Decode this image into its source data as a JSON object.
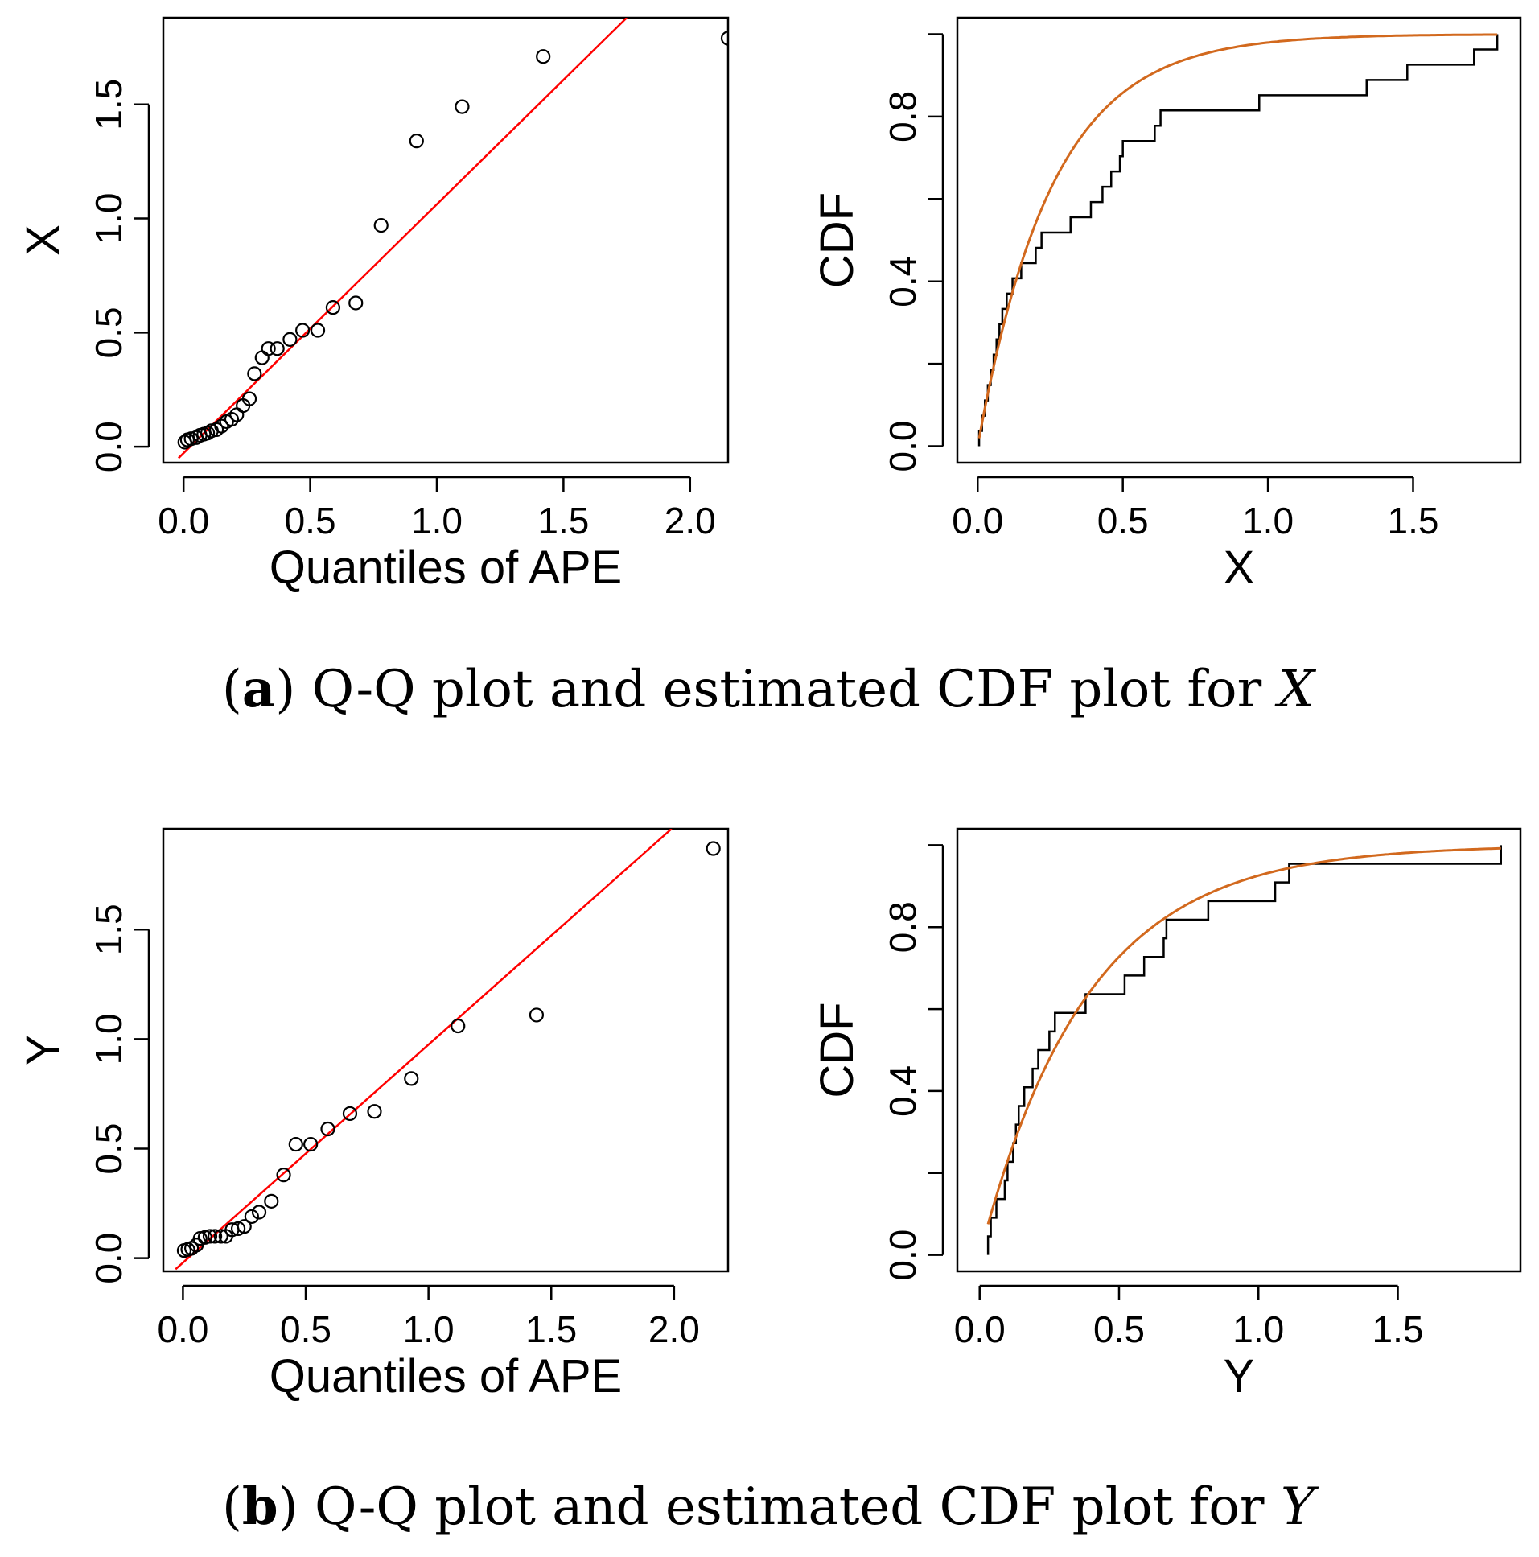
{
  "chart_data": [
    {
      "id": "qq_x",
      "type": "scatter",
      "title": "",
      "xlabel": "Quantiles of APE",
      "ylabel": "X",
      "xlim": [
        -0.08,
        2.15
      ],
      "ylim": [
        -0.07,
        1.88
      ],
      "xticks": [
        0.0,
        0.5,
        1.0,
        1.5,
        2.0
      ],
      "xtick_labels": [
        "0.0",
        "0.5",
        "1.0",
        "1.5",
        "2.0"
      ],
      "yticks": [
        0.0,
        0.5,
        1.0,
        1.5
      ],
      "ytick_labels": [
        "0.0",
        "0.5",
        "1.0",
        "1.5"
      ],
      "points": [
        [
          0.005,
          0.02
        ],
        [
          0.015,
          0.03
        ],
        [
          0.03,
          0.035
        ],
        [
          0.05,
          0.04
        ],
        [
          0.065,
          0.05
        ],
        [
          0.08,
          0.055
        ],
        [
          0.095,
          0.06
        ],
        [
          0.11,
          0.07
        ],
        [
          0.13,
          0.075
        ],
        [
          0.15,
          0.09
        ],
        [
          0.17,
          0.11
        ],
        [
          0.19,
          0.12
        ],
        [
          0.21,
          0.14
        ],
        [
          0.235,
          0.18
        ],
        [
          0.26,
          0.21
        ],
        [
          0.28,
          0.32
        ],
        [
          0.31,
          0.39
        ],
        [
          0.335,
          0.43
        ],
        [
          0.37,
          0.43
        ],
        [
          0.42,
          0.47
        ],
        [
          0.47,
          0.51
        ],
        [
          0.53,
          0.51
        ],
        [
          0.59,
          0.61
        ],
        [
          0.68,
          0.63
        ],
        [
          0.78,
          0.97
        ],
        [
          0.92,
          1.34
        ],
        [
          1.1,
          1.49
        ],
        [
          1.42,
          1.71
        ],
        [
          2.15,
          1.79
        ]
      ],
      "line": {
        "x": [
          -0.02,
          1.75
        ],
        "y": [
          -0.05,
          1.88
        ],
        "color": "#ff0000"
      }
    },
    {
      "id": "cdf_x",
      "type": "line",
      "title": "",
      "xlabel": "X",
      "ylabel": "CDF",
      "xlim": [
        -0.07,
        1.87
      ],
      "ylim": [
        -0.04,
        1.04
      ],
      "xticks": [
        0.0,
        0.5,
        1.0,
        1.5
      ],
      "xtick_labels": [
        "0.0",
        "0.5",
        "1.0",
        "1.5"
      ],
      "yticks": [
        0.0,
        0.4,
        0.8
      ],
      "ytick_labels": [
        "0.0",
        "0.4",
        "0.8"
      ],
      "ytick_marks": [
        0.0,
        0.2,
        0.4,
        0.6,
        0.8,
        1.0
      ],
      "ecdf_x": [
        0.005,
        0.015,
        0.025,
        0.035,
        0.045,
        0.055,
        0.065,
        0.075,
        0.085,
        0.1,
        0.12,
        0.15,
        0.2,
        0.22,
        0.32,
        0.39,
        0.43,
        0.46,
        0.49,
        0.5,
        0.61,
        0.63,
        0.97,
        1.34,
        1.48,
        1.71,
        1.79
      ],
      "ecdf_color": "#000000",
      "fit": {
        "rate": 3.9,
        "color": "#d2691e"
      }
    },
    {
      "id": "qq_y",
      "type": "scatter",
      "title": "",
      "xlabel": "Quantiles of APE",
      "ylabel": "Y",
      "xlim": [
        -0.08,
        2.22
      ],
      "ylim": [
        -0.06,
        1.96
      ],
      "xticks": [
        0.0,
        0.5,
        1.0,
        1.5,
        2.0
      ],
      "xtick_labels": [
        "0.0",
        "0.5",
        "1.0",
        "1.5",
        "2.0"
      ],
      "yticks": [
        0.0,
        0.5,
        1.0,
        1.5
      ],
      "ytick_labels": [
        "0.0",
        "0.5",
        "1.0",
        "1.5"
      ],
      "points": [
        [
          0.005,
          0.035
        ],
        [
          0.02,
          0.04
        ],
        [
          0.035,
          0.045
        ],
        [
          0.055,
          0.06
        ],
        [
          0.07,
          0.09
        ],
        [
          0.09,
          0.095
        ],
        [
          0.11,
          0.1
        ],
        [
          0.13,
          0.1
        ],
        [
          0.155,
          0.1
        ],
        [
          0.175,
          0.1
        ],
        [
          0.2,
          0.13
        ],
        [
          0.225,
          0.135
        ],
        [
          0.25,
          0.145
        ],
        [
          0.28,
          0.19
        ],
        [
          0.31,
          0.21
        ],
        [
          0.36,
          0.26
        ],
        [
          0.41,
          0.38
        ],
        [
          0.46,
          0.52
        ],
        [
          0.52,
          0.52
        ],
        [
          0.59,
          0.59
        ],
        [
          0.68,
          0.66
        ],
        [
          0.78,
          0.67
        ],
        [
          0.93,
          0.82
        ],
        [
          1.12,
          1.06
        ],
        [
          1.44,
          1.11
        ],
        [
          2.16,
          1.87
        ]
      ],
      "line": {
        "x": [
          -0.03,
          1.99
        ],
        "y": [
          -0.05,
          1.96
        ],
        "color": "#ff0000"
      }
    },
    {
      "id": "cdf_y",
      "type": "line",
      "title": "",
      "xlabel": "Y",
      "ylabel": "CDF",
      "xlim": [
        -0.08,
        1.94
      ],
      "ylim": [
        -0.04,
        1.04
      ],
      "xticks": [
        0.0,
        0.5,
        1.0,
        1.5
      ],
      "xtick_labels": [
        "0.0",
        "0.5",
        "1.0",
        "1.5"
      ],
      "yticks": [
        0.0,
        0.4,
        0.8
      ],
      "ytick_labels": [
        "0.0",
        "0.4",
        "0.8"
      ],
      "ytick_marks": [
        0.0,
        0.2,
        0.4,
        0.6,
        0.8,
        1.0
      ],
      "ecdf_x": [
        0.03,
        0.04,
        0.06,
        0.09,
        0.1,
        0.12,
        0.13,
        0.14,
        0.16,
        0.19,
        0.21,
        0.25,
        0.27,
        0.38,
        0.52,
        0.59,
        0.66,
        0.67,
        0.82,
        1.06,
        1.11,
        1.87
      ],
      "ecdf_color": "#000000",
      "fit": {
        "rate": 2.6,
        "color": "#d2691e"
      }
    }
  ],
  "captions": {
    "a": {
      "open": "(",
      "tag": "a",
      "text": ") Q-Q plot and estimated CDF plot for ",
      "var": "X"
    },
    "b": {
      "open": "(",
      "tag": "b",
      "text": ") Q-Q plot and estimated CDF plot for ",
      "var": "Y"
    }
  }
}
